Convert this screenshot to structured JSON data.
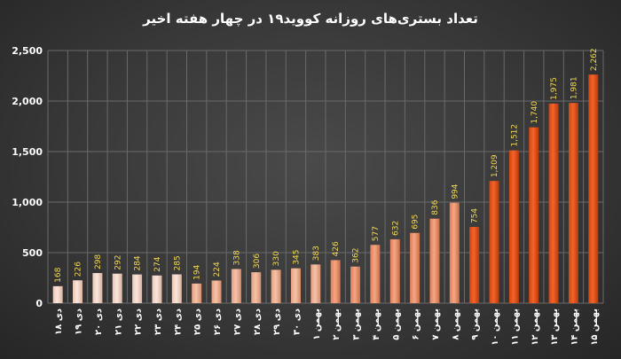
{
  "chart_data": {
    "type": "bar",
    "title": "تعداد بستری‌های روزانه کووید۱۹ در چهار هفته اخیر",
    "xlabel": "",
    "ylabel": "",
    "ylim": [
      0,
      2500
    ],
    "yticks": [
      "0",
      "500",
      "1,000",
      "1,500",
      "2,000",
      "2,500"
    ],
    "grid": true,
    "legend": "none",
    "categories": [
      "۱۸ دی",
      "۱۹ دی",
      "۲۰ دی",
      "۲۱ دی",
      "۲۲ دی",
      "۲۳ دی",
      "۲۴ دی",
      "۲۵ دی",
      "۲۶ دی",
      "۲۷ دی",
      "۲۸ دی",
      "۲۹ دی",
      "۳۰ دی",
      "۱ بهمن",
      "۲ بهمن",
      "۳ بهمن",
      "۴ بهمن",
      "۵ بهمن",
      "۶ بهمن",
      "۷ بهمن",
      "۸ بهمن",
      "۹ بهمن",
      "۱۰ بهمن",
      "۱۱ بهمن",
      "۱۲ بهمن",
      "۱۳ بهمن",
      "۱۴ بهمن",
      "۱۵ بهمن"
    ],
    "values": [
      168,
      226,
      298,
      292,
      284,
      274,
      285,
      194,
      224,
      338,
      306,
      330,
      345,
      383,
      426,
      362,
      577,
      632,
      695,
      836,
      994,
      754,
      1209,
      1512,
      1740,
      1975,
      1981,
      2262
    ],
    "labels": [
      "168",
      "226",
      "298",
      "292",
      "284",
      "274",
      "285",
      "194",
      "224",
      "338",
      "306",
      "330",
      "345",
      "383",
      "426",
      "362",
      "577",
      "632",
      "695",
      "836",
      "994",
      "754",
      "1,209",
      "1,512",
      "1,740",
      "1,975",
      "1,981",
      "2,262"
    ],
    "colors": {
      "week1": "#f5d9cb",
      "week2": "#f3b598",
      "week3": "#f09570",
      "week4": "#e8521a",
      "label": "#f2d94e"
    }
  }
}
